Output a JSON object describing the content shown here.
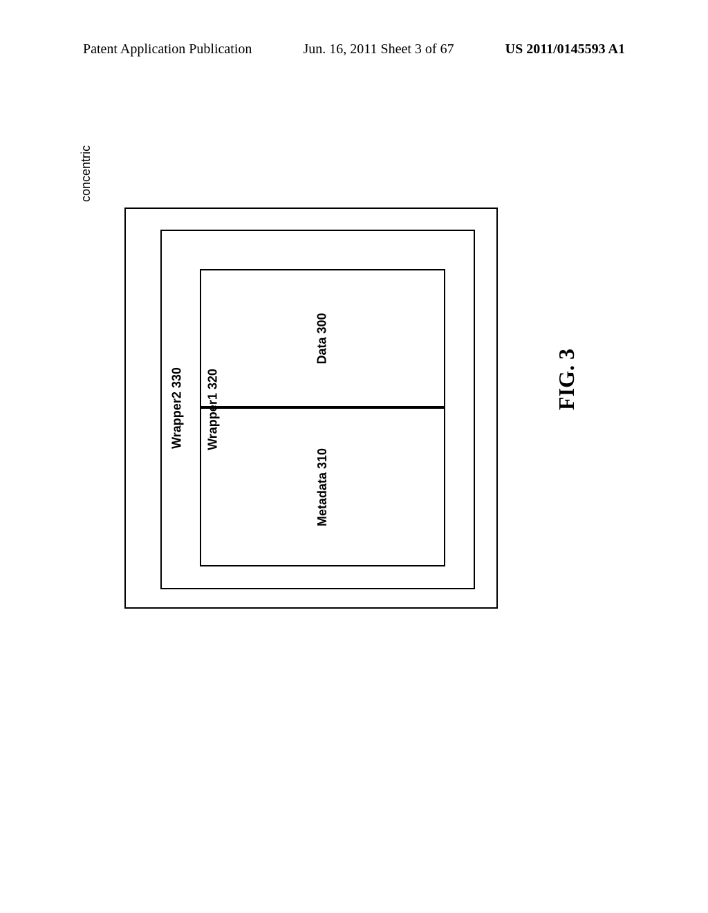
{
  "header": {
    "left": "Patent Application Publication",
    "center": "Jun. 16, 2011  Sheet 3 of 67",
    "right": "US 2011/0145593 A1"
  },
  "diagram": {
    "type": "concentric-boxes",
    "concentric_label": "concentric",
    "wrapper2": {
      "label": "Wrapper2 330",
      "border_color": "#000000",
      "border_width": 2
    },
    "wrapper1": {
      "label": "Wrapper1 320",
      "border_color": "#000000",
      "border_width": 2
    },
    "data_box": {
      "label": "Data 300",
      "border_color": "#000000",
      "border_width": 2
    },
    "metadata_box": {
      "label": "Metadata 310",
      "border_color": "#000000",
      "border_width": 2
    },
    "figure_label": "FIG. 3",
    "background_color": "#ffffff",
    "label_fontsize": 18,
    "label_fontweight": "bold",
    "figure_fontsize": 32
  }
}
